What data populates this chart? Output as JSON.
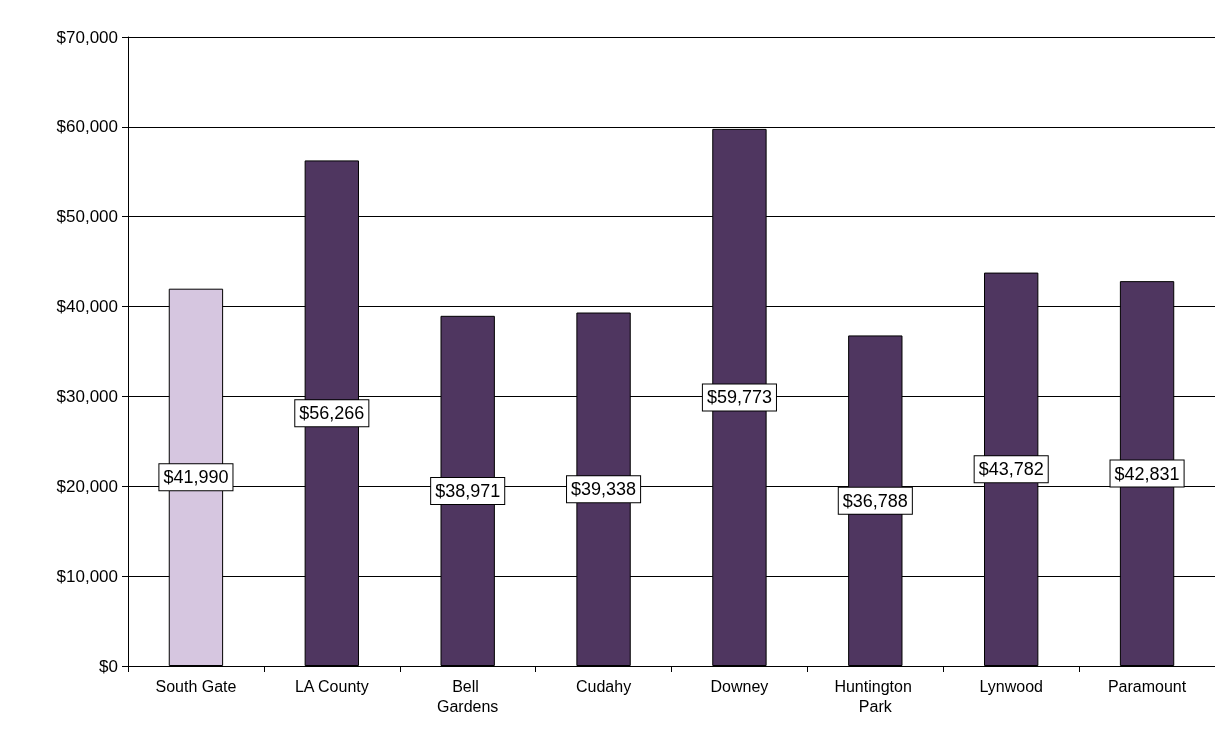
{
  "chart_data": {
    "type": "bar",
    "categories": [
      "South Gate",
      "LA County",
      "Bell Gardens",
      "Cudahy",
      "Downey",
      "Huntington Park",
      "Lynwood",
      "Paramount"
    ],
    "values": [
      41990,
      56266,
      38971,
      39338,
      59773,
      36788,
      43782,
      42831
    ],
    "colors": [
      "#d6c6e0",
      "#4f3660",
      "#4f3660",
      "#4f3660",
      "#4f3660",
      "#4f3660",
      "#4f3660",
      "#4f3660"
    ],
    "value_labels": [
      "$41,990",
      "$56,266",
      "$38,971",
      "$39,338",
      "$59,773",
      "$36,788",
      "$43,782",
      "$42,831"
    ],
    "ylim": [
      0,
      70000
    ],
    "yticks": [
      {
        "value": 0,
        "label": "$0"
      },
      {
        "value": 10000,
        "label": "$10,000"
      },
      {
        "value": 20000,
        "label": "$20,000"
      },
      {
        "value": 30000,
        "label": "$30,000"
      },
      {
        "value": 40000,
        "label": "$40,000"
      },
      {
        "value": 50000,
        "label": "$50,000"
      },
      {
        "value": 60000,
        "label": "$60,000"
      },
      {
        "value": 70000,
        "label": "$70,000"
      }
    ],
    "grid": "y"
  }
}
